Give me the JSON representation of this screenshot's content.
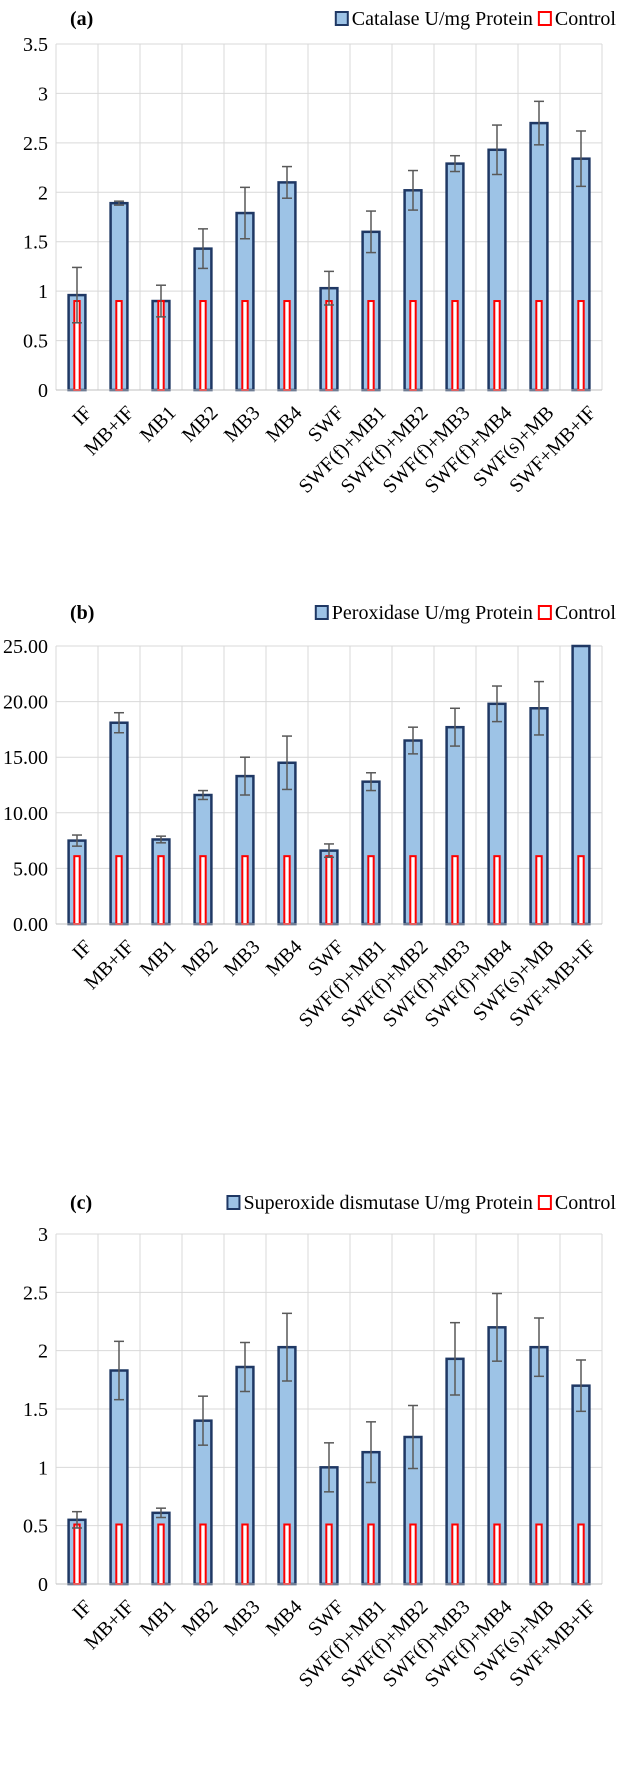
{
  "chart_data": [
    {
      "type": "bar",
      "panel_label": "(a)",
      "categories": [
        "IF",
        "MB+IF",
        "MB1",
        "MB2",
        "MB3",
        "MB4",
        "SWF",
        "SWF(f)+MB1",
        "SWF(f)+MB2",
        "SWF(f)+MB3",
        "SWF(f)+MB4",
        "SWF(s)+MB",
        "SWF+MB+IF"
      ],
      "series": [
        {
          "name": "Catalase U/mg Protein",
          "values": [
            0.96,
            1.89,
            0.9,
            1.43,
            1.79,
            2.1,
            1.03,
            1.6,
            2.02,
            2.29,
            2.43,
            2.7,
            2.34
          ],
          "errors": [
            0.28,
            0.02,
            0.16,
            0.2,
            0.26,
            0.16,
            0.17,
            0.21,
            0.2,
            0.08,
            0.25,
            0.22,
            0.28
          ]
        },
        {
          "name": "Control",
          "values": [
            0.9,
            0.9,
            0.9,
            0.9,
            0.9,
            0.9,
            0.9,
            0.9,
            0.9,
            0.9,
            0.9,
            0.9,
            0.9
          ]
        }
      ],
      "ylim": [
        0,
        3.5
      ],
      "yticks": [
        0,
        0.5,
        1,
        1.5,
        2,
        2.5,
        3,
        3.5
      ],
      "ytick_labels": [
        "0",
        "0.5",
        "1",
        "1.5",
        "2",
        "2.5",
        "3",
        "3.5"
      ],
      "grid": true,
      "legend_position": "top-right"
    },
    {
      "type": "bar",
      "panel_label": "(b)",
      "categories": [
        "IF",
        "MB+IF",
        "MB1",
        "MB2",
        "MB3",
        "MB4",
        "SWF",
        "SWF(f)+MB1",
        "SWF(f)+MB2",
        "SWF(f)+MB3",
        "SWF(f)+MB4",
        "SWF(s)+MB",
        "SWF+MB+IF"
      ],
      "series": [
        {
          "name": "Peroxidase U/mg Protein",
          "values": [
            7.5,
            18.1,
            7.6,
            11.6,
            13.3,
            14.5,
            6.6,
            12.8,
            16.5,
            17.7,
            19.8,
            19.4,
            25.4
          ],
          "errors": [
            0.5,
            0.9,
            0.3,
            0.4,
            1.7,
            2.4,
            0.6,
            0.8,
            1.2,
            1.7,
            1.6,
            2.4,
            0
          ]
        },
        {
          "name": "Control",
          "values": [
            6.1,
            6.1,
            6.1,
            6.1,
            6.1,
            6.1,
            6.1,
            6.1,
            6.1,
            6.1,
            6.1,
            6.1,
            6.1
          ]
        }
      ],
      "ylim": [
        0,
        25
      ],
      "yticks": [
        0,
        5,
        10,
        15,
        20,
        25
      ],
      "ytick_labels": [
        "0.00",
        "5.00",
        "10.00",
        "15.00",
        "20.00",
        "25.00"
      ],
      "grid": true,
      "legend_position": "top-right"
    },
    {
      "type": "bar",
      "panel_label": "(c)",
      "categories": [
        "IF",
        "MB+IF",
        "MB1",
        "MB2",
        "MB3",
        "MB4",
        "SWF",
        "SWF(f)+MB1",
        "SWF(f)+MB2",
        "SWF(f)+MB3",
        "SWF(f)+MB4",
        "SWF(s)+MB",
        "SWF+MB+IF"
      ],
      "series": [
        {
          "name": "Superoxide dismutase U/mg Protein",
          "values": [
            0.55,
            1.83,
            0.61,
            1.4,
            1.86,
            2.03,
            1.0,
            1.13,
            1.26,
            1.93,
            2.2,
            2.03,
            1.7
          ],
          "errors": [
            0.07,
            0.25,
            0.04,
            0.21,
            0.21,
            0.29,
            0.21,
            0.26,
            0.27,
            0.31,
            0.29,
            0.25,
            0.22
          ]
        },
        {
          "name": "Control",
          "values": [
            0.51,
            0.51,
            0.51,
            0.51,
            0.51,
            0.51,
            0.51,
            0.51,
            0.51,
            0.51,
            0.51,
            0.51,
            0.51
          ]
        }
      ],
      "ylim": [
        0,
        3
      ],
      "yticks": [
        0,
        0.5,
        1,
        1.5,
        2,
        2.5,
        3
      ],
      "ytick_labels": [
        "0",
        "0.5",
        "1",
        "1.5",
        "2",
        "2.5",
        "3"
      ],
      "grid": true,
      "legend_position": "top-right"
    }
  ],
  "colors": {
    "bar_fill": "#9dc3e6",
    "bar_stroke": "#1f3864",
    "control_fill": "#ffffff",
    "control_stroke": "#ff0000",
    "error_bar": "#595959",
    "grid": "#d9d9d9"
  }
}
